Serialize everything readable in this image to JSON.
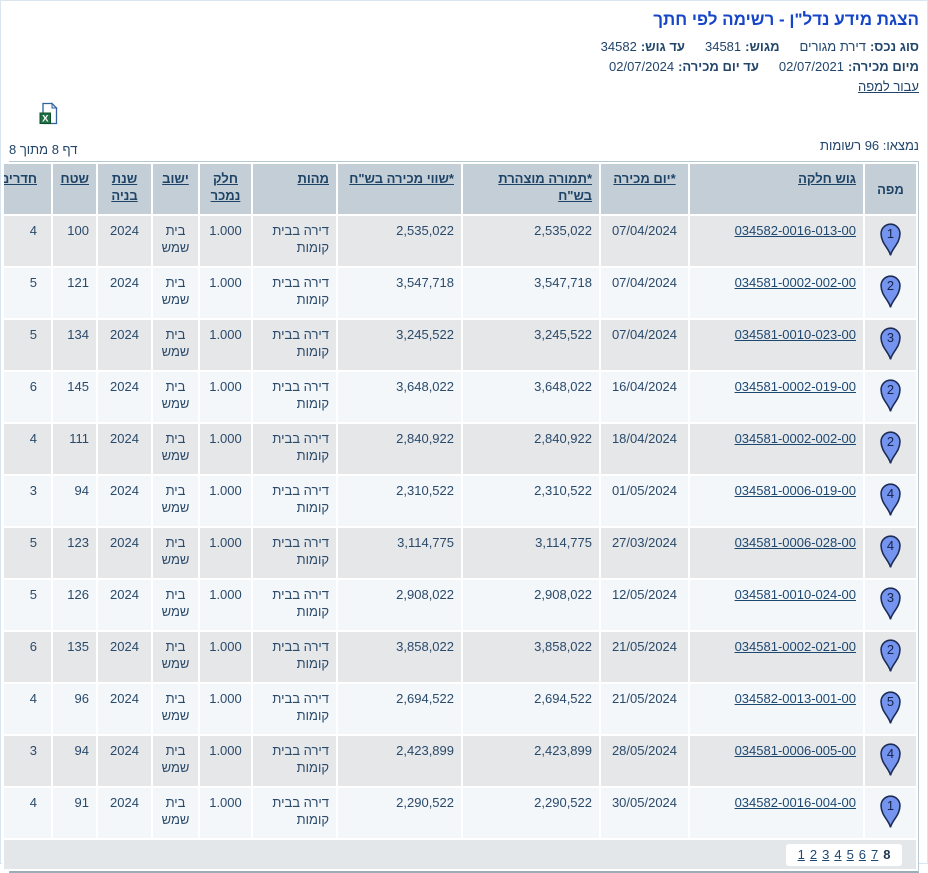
{
  "page": {
    "title": "הצגת מידע נדל\"ן - רשימה לפי חתך",
    "filter_lines": [
      {
        "items": [
          {
            "label": "סוג נכס:",
            "value": "דירת מגורים"
          },
          {
            "label": "מגוש:",
            "value": "34581"
          },
          {
            "label": "עד גוש:",
            "value": "34582"
          }
        ]
      },
      {
        "items": [
          {
            "label": "מיום מכירה:",
            "value": "02/07/2021"
          },
          {
            "label": "עד יום מכירה:",
            "value": "02/07/2024"
          }
        ]
      }
    ],
    "map_link_label": "עבור למפה",
    "excel_icon": "excel-export-icon",
    "results_count": "נמצאו: 96 רשומות",
    "page_indicator": "דף 8 מתוך 8"
  },
  "colors": {
    "title_blue": "#1646c8",
    "text_navy": "#2a4a6b",
    "header_bg": "#c3ced6",
    "row_odd_bg": "#e6e7e9",
    "row_even_bg": "#f3f7fa",
    "pin_fill": "#7494ef",
    "excel_green": "#1e7145"
  },
  "table": {
    "headers": [
      {
        "key": "map",
        "label": "מפה",
        "sortable": false
      },
      {
        "key": "parcel",
        "label": "גוש חלקה",
        "sortable": true
      },
      {
        "key": "sale_date",
        "label": "*יום מכירה",
        "sortable": true
      },
      {
        "key": "declared",
        "label": "*תמורה מוצהרת בש\"ח",
        "sortable": true
      },
      {
        "key": "value",
        "label": "*שווי מכירה בש\"ח",
        "sortable": true
      },
      {
        "key": "nature",
        "label": "מהות",
        "sortable": true
      },
      {
        "key": "part",
        "label": "חלק נמכר",
        "sortable": true
      },
      {
        "key": "locality",
        "label": "ישוב",
        "sortable": true
      },
      {
        "key": "year",
        "label": "שנת בניה",
        "sortable": true
      },
      {
        "key": "area",
        "label": "שטח",
        "sortable": true
      },
      {
        "key": "rooms",
        "label": "חדרים",
        "sortable": true
      }
    ],
    "rows": [
      {
        "pin": "1",
        "parcel": "034582-0016-013-00",
        "sale_date": "07/04/2024",
        "declared": "2,535,022",
        "value": "2,535,022",
        "nature": "דירה בבית קומות",
        "part": "1.000",
        "locality": "בית שמש",
        "year": "2024",
        "area": "100",
        "rooms": "4"
      },
      {
        "pin": "2",
        "parcel": "034581-0002-002-00",
        "sale_date": "07/04/2024",
        "declared": "3,547,718",
        "value": "3,547,718",
        "nature": "דירה בבית קומות",
        "part": "1.000",
        "locality": "בית שמש",
        "year": "2024",
        "area": "121",
        "rooms": "5"
      },
      {
        "pin": "3",
        "parcel": "034581-0010-023-00",
        "sale_date": "07/04/2024",
        "declared": "3,245,522",
        "value": "3,245,522",
        "nature": "דירה בבית קומות",
        "part": "1.000",
        "locality": "בית שמש",
        "year": "2024",
        "area": "134",
        "rooms": "5"
      },
      {
        "pin": "2",
        "parcel": "034581-0002-019-00",
        "sale_date": "16/04/2024",
        "declared": "3,648,022",
        "value": "3,648,022",
        "nature": "דירה בבית קומות",
        "part": "1.000",
        "locality": "בית שמש",
        "year": "2024",
        "area": "145",
        "rooms": "6"
      },
      {
        "pin": "2",
        "parcel": "034581-0002-002-00",
        "sale_date": "18/04/2024",
        "declared": "2,840,922",
        "value": "2,840,922",
        "nature": "דירה בבית קומות",
        "part": "1.000",
        "locality": "בית שמש",
        "year": "2024",
        "area": "111",
        "rooms": "4"
      },
      {
        "pin": "4",
        "parcel": "034581-0006-019-00",
        "sale_date": "01/05/2024",
        "declared": "2,310,522",
        "value": "2,310,522",
        "nature": "דירה בבית קומות",
        "part": "1.000",
        "locality": "בית שמש",
        "year": "2024",
        "area": "94",
        "rooms": "3"
      },
      {
        "pin": "4",
        "parcel": "034581-0006-028-00",
        "sale_date": "27/03/2024",
        "declared": "3,114,775",
        "value": "3,114,775",
        "nature": "דירה בבית קומות",
        "part": "1.000",
        "locality": "בית שמש",
        "year": "2024",
        "area": "123",
        "rooms": "5"
      },
      {
        "pin": "3",
        "parcel": "034581-0010-024-00",
        "sale_date": "12/05/2024",
        "declared": "2,908,022",
        "value": "2,908,022",
        "nature": "דירה בבית קומות",
        "part": "1.000",
        "locality": "בית שמש",
        "year": "2024",
        "area": "126",
        "rooms": "5"
      },
      {
        "pin": "2",
        "parcel": "034581-0002-021-00",
        "sale_date": "21/05/2024",
        "declared": "3,858,022",
        "value": "3,858,022",
        "nature": "דירה בבית קומות",
        "part": "1.000",
        "locality": "בית שמש",
        "year": "2024",
        "area": "135",
        "rooms": "6"
      },
      {
        "pin": "5",
        "parcel": "034582-0013-001-00",
        "sale_date": "21/05/2024",
        "declared": "2,694,522",
        "value": "2,694,522",
        "nature": "דירה בבית קומות",
        "part": "1.000",
        "locality": "בית שמש",
        "year": "2024",
        "area": "96",
        "rooms": "4"
      },
      {
        "pin": "4",
        "parcel": "034581-0006-005-00",
        "sale_date": "28/05/2024",
        "declared": "2,423,899",
        "value": "2,423,899",
        "nature": "דירה בבית קומות",
        "part": "1.000",
        "locality": "בית שמש",
        "year": "2024",
        "area": "94",
        "rooms": "3"
      },
      {
        "pin": "1",
        "parcel": "034582-0016-004-00",
        "sale_date": "30/05/2024",
        "declared": "2,290,522",
        "value": "2,290,522",
        "nature": "דירה בבית קומות",
        "part": "1.000",
        "locality": "בית שמש",
        "year": "2024",
        "area": "91",
        "rooms": "4"
      }
    ],
    "pagination": [
      "1",
      "2",
      "3",
      "4",
      "5",
      "6",
      "7",
      "8"
    ],
    "current_page": "8"
  }
}
